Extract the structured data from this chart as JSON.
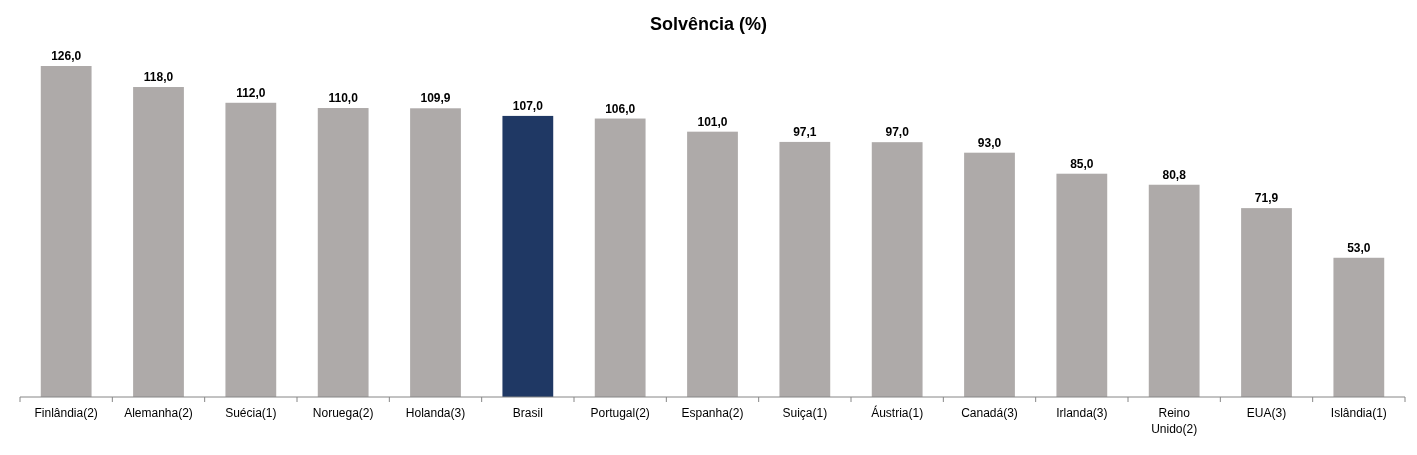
{
  "chart_data": {
    "type": "bar",
    "title": "Solvência (%)",
    "categories": [
      "Finlândia(2)",
      "Alemanha(2)",
      "Suécia(1)",
      "Noruega(2)",
      "Holanda(3)",
      "Brasil",
      "Portugal(2)",
      "Espanha(2)",
      "Suiça(1)",
      "Áustria(1)",
      "Canadá(3)",
      "Irlanda(3)",
      "Reino Unido(2)",
      "EUA(3)",
      "Islândia(1)"
    ],
    "values": [
      126,
      118,
      112,
      110,
      109.9,
      107,
      106,
      101,
      97.1,
      97,
      93,
      85,
      80.8,
      71.9,
      53
    ],
    "value_labels": [
      "126,0",
      "118,0",
      "112,0",
      "110,0",
      "109,9",
      "107,0",
      "106,0",
      "101,0",
      "97,1",
      "97,0",
      "93,0",
      "85,0",
      "80,8",
      "71,9",
      "53,0"
    ],
    "colors": [
      "#aeaaa9",
      "#aeaaa9",
      "#aeaaa9",
      "#aeaaa9",
      "#aeaaa9",
      "#1f3864",
      "#aeaaa9",
      "#aeaaa9",
      "#aeaaa9",
      "#aeaaa9",
      "#aeaaa9",
      "#aeaaa9",
      "#aeaaa9",
      "#aeaaa9",
      "#aeaaa9"
    ]
  }
}
